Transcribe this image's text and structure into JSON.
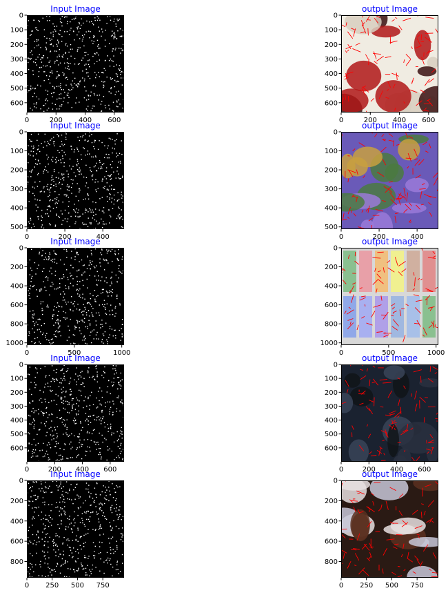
{
  "chart_data": [
    {
      "type": "image",
      "title": "Input Image",
      "image_content": "edge map of strawberries in a bowl (white edges on black)",
      "image_kind": "edges",
      "xlim": [
        0,
        667
      ],
      "ylim": [
        667,
        0
      ],
      "x_ticks": [
        0,
        200,
        400,
        600
      ],
      "y_ticks": [
        0,
        100,
        200,
        300,
        400,
        500,
        600
      ]
    },
    {
      "type": "image",
      "title": "output Image",
      "image_content": "photo of strawberries in a white bowl with red edge overlay",
      "image_kind": "photo",
      "palette": [
        "#f0ece2",
        "#d8cfc0",
        "#b01818",
        "#3a1010"
      ],
      "xlim": [
        0,
        667
      ],
      "ylim": [
        667,
        0
      ],
      "x_ticks": [
        0,
        200,
        400,
        600
      ],
      "y_ticks": [
        0,
        100,
        200,
        300,
        400,
        500,
        600
      ]
    },
    {
      "type": "image",
      "title": "Input Image",
      "image_content": "dense edge map of purple flowers",
      "image_kind": "edges",
      "xlim": [
        0,
        512
      ],
      "ylim": [
        512,
        0
      ],
      "x_ticks": [
        0,
        200,
        400
      ],
      "y_ticks": [
        0,
        100,
        200,
        300,
        400,
        500
      ]
    },
    {
      "type": "image",
      "title": "output Image",
      "image_content": "purple flowers photo with dense red edge overlay",
      "image_kind": "photo",
      "palette": [
        "#6a5ab8",
        "#9a7ad8",
        "#4a7a40",
        "#c8a040"
      ],
      "xlim": [
        0,
        512
      ],
      "ylim": [
        512,
        0
      ],
      "x_ticks": [
        0,
        200,
        400
      ],
      "y_ticks": [
        0,
        100,
        200,
        300,
        400,
        500
      ]
    },
    {
      "type": "image",
      "title": "Input Image",
      "image_content": "edge map of pastel color swatches in two rows",
      "image_kind": "edges",
      "xlim": [
        0,
        1024
      ],
      "ylim": [
        1024,
        0
      ],
      "x_ticks": [
        0,
        500,
        1000
      ],
      "y_ticks": [
        0,
        200,
        400,
        600,
        800,
        1000
      ]
    },
    {
      "type": "image",
      "title": "output Image",
      "image_content": "pastel color swatches photo with red edge overlay",
      "image_kind": "swatches",
      "palette": [
        "#8ac090",
        "#e8a0a8",
        "#f0c080",
        "#f0f090",
        "#d0b0a0",
        "#e09090",
        "#90a8e8",
        "#a8b0f0",
        "#b0a0e8",
        "#a0b8e0",
        "#a8c0e8"
      ],
      "xlim": [
        0,
        1024
      ],
      "ylim": [
        1024,
        0
      ],
      "x_ticks": [
        0,
        500,
        1000
      ],
      "y_ticks": [
        0,
        200,
        400,
        600,
        800,
        1000
      ]
    },
    {
      "type": "image",
      "title": "Input Image",
      "image_content": "sparse edge map of a dark rocky landscape",
      "image_kind": "edges",
      "xlim": [
        0,
        700
      ],
      "ylim": [
        700,
        0
      ],
      "x_ticks": [
        0,
        200,
        400,
        600
      ],
      "y_ticks": [
        0,
        100,
        200,
        300,
        400,
        500,
        600
      ]
    },
    {
      "type": "image",
      "title": "output Image",
      "image_content": "dark rocky landscape photo with red edge overlay",
      "image_kind": "photo",
      "palette": [
        "#1a2230",
        "#2a3040",
        "#101418",
        "#3a4458"
      ],
      "xlim": [
        0,
        700
      ],
      "ylim": [
        700,
        0
      ],
      "x_ticks": [
        0,
        200,
        400,
        600
      ],
      "y_ticks": [
        0,
        100,
        200,
        300,
        400,
        500,
        600
      ]
    },
    {
      "type": "image",
      "title": "Input Image",
      "image_content": "edge map of a vase on a shelf",
      "image_kind": "edges",
      "xlim": [
        0,
        960
      ],
      "ylim": [
        960,
        0
      ],
      "x_ticks": [
        0,
        250,
        500,
        750
      ],
      "y_ticks": [
        0,
        200,
        400,
        600,
        800
      ]
    },
    {
      "type": "image",
      "title": "output Image",
      "image_content": "decorated vase photo with red edge overlay",
      "image_kind": "photo",
      "palette": [
        "#2a1a14",
        "#c8c8d8",
        "#e8e0e0",
        "#5a3020"
      ],
      "xlim": [
        0,
        960
      ],
      "ylim": [
        960,
        0
      ],
      "x_ticks": [
        0,
        250,
        500,
        750
      ],
      "y_ticks": [
        0,
        200,
        400,
        600,
        800
      ]
    }
  ]
}
